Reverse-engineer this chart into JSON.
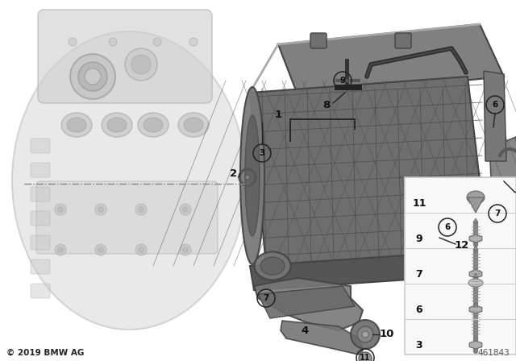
{
  "copyright": "© 2019 BMW AG",
  "part_number": "461843",
  "bg_color": "#ffffff",
  "engine_color": "#d8d8d8",
  "engine_alpha": 0.55,
  "ic_body_color": "#6a6a6a",
  "ic_grid_color": "#4a4a4a",
  "ic_highlight_color": "#8a8a8a",
  "bracket_color": "#787878",
  "label_color": "#111111",
  "circle_edge": "#222222",
  "line_color": "#222222",
  "fastener_box_color": "#eeeeee",
  "fastener_edge": "#aaaaaa"
}
